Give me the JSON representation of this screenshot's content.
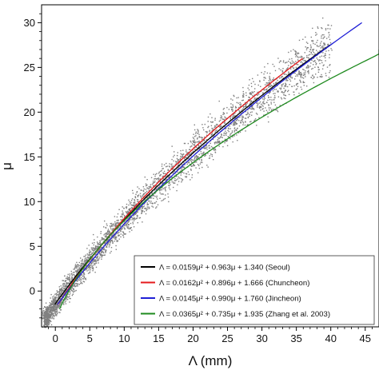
{
  "chart_data": {
    "type": "scatter",
    "title": "",
    "xlabel": "Λ (mm)",
    "ylabel": "μ",
    "xlim": [
      -2,
      47
    ],
    "ylim": [
      -4,
      32
    ],
    "xticks": [
      0,
      5,
      10,
      15,
      20,
      25,
      30,
      35,
      40,
      45
    ],
    "yticks": [
      0,
      5,
      10,
      15,
      20,
      25,
      30
    ],
    "grid": false,
    "legend_position": "bottom-right",
    "scatter": {
      "color": "#808080",
      "description_series": "observations",
      "trend": {
        "a": 0.0159,
        "b": 0.963,
        "c": 1.34
      },
      "x_range": [
        -1.5,
        40
      ]
    },
    "series": [
      {
        "name": "Λ = 0.0159μ² + 0.963μ + 1.340 (Seoul)",
        "color": "#000000",
        "coef": [
          0.0159,
          0.963,
          1.34
        ],
        "mu_range": [
          -1.5,
          27.5
        ]
      },
      {
        "name": "Λ = 0.0162μ² + 0.896μ + 1.666 (Chuncheon)",
        "color": "#e41a1c",
        "coef": [
          0.0162,
          0.896,
          1.666
        ],
        "mu_range": [
          -1.5,
          26.0
        ]
      },
      {
        "name": "Λ = 0.0145μ² + 0.990μ + 1.760 (Jincheon)",
        "color": "#1f1fd6",
        "coef": [
          0.0145,
          0.99,
          1.76
        ],
        "mu_range": [
          -1.5,
          30.0
        ]
      },
      {
        "name": "Λ = 0.0365μ² + 0.735μ + 1.935 (Zhang et al. 2003)",
        "color": "#1e8a1e",
        "coef": [
          0.0365,
          0.735,
          1.935
        ],
        "mu_range": [
          -2.0,
          27.0
        ]
      }
    ]
  }
}
